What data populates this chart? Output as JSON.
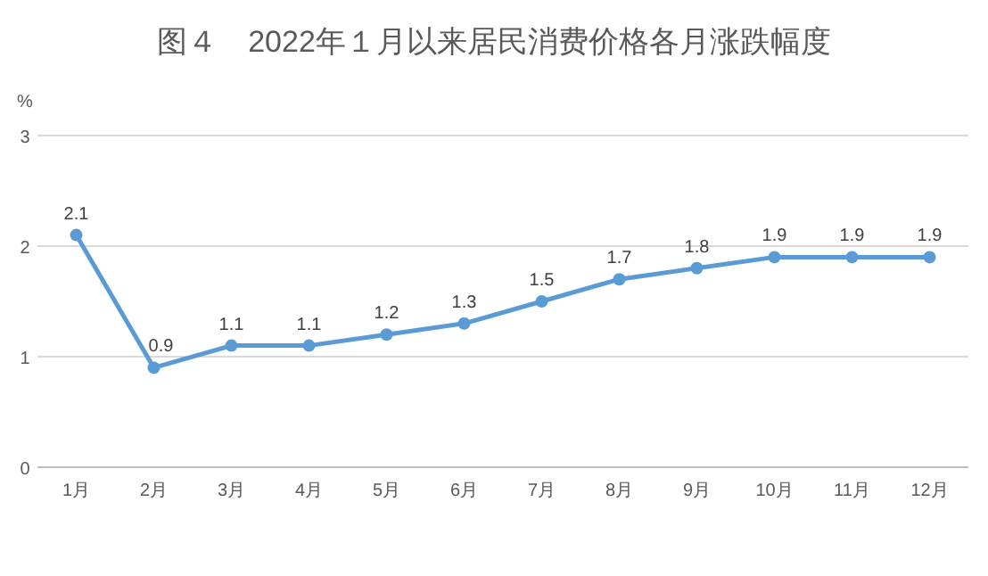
{
  "chart_data": {
    "type": "line",
    "title": "图４　2022年１月以来居民消费价格各月涨跌幅度",
    "ylabel": "%",
    "categories": [
      "1月",
      "2月",
      "3月",
      "4月",
      "5月",
      "6月",
      "7月",
      "8月",
      "9月",
      "10月",
      "11月",
      "12月"
    ],
    "series": [
      {
        "color": "#5b9bd5",
        "values": [
          2.1,
          0.9,
          1.1,
          1.1,
          1.2,
          1.3,
          1.5,
          1.7,
          1.8,
          1.9,
          1.9,
          1.9
        ]
      }
    ],
    "ylim": [
      0,
      3
    ],
    "yticks": [
      0,
      1,
      2,
      3
    ],
    "grid": "y",
    "marker": "circle",
    "data_labels": true
  }
}
